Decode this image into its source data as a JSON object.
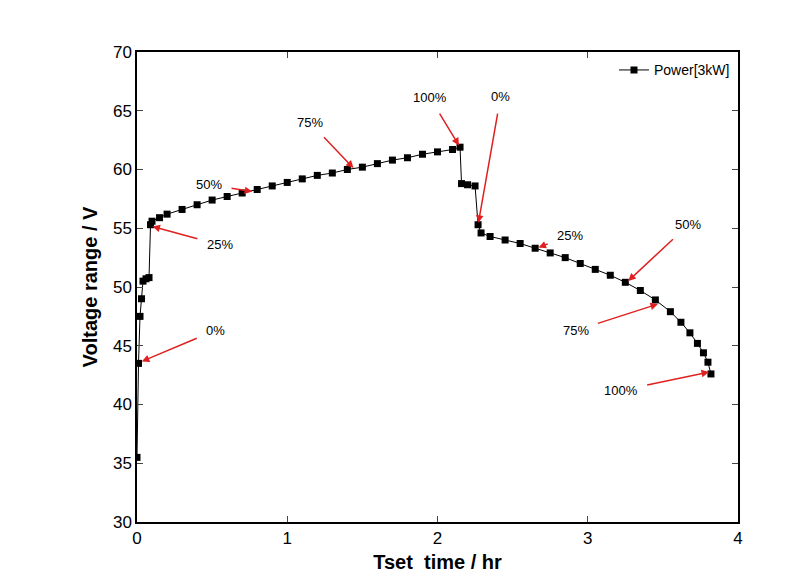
{
  "chart_data": {
    "type": "line",
    "x_label": "Tset  time / hr",
    "y_label": "Voltage range / V",
    "xlim": [
      0,
      4
    ],
    "xticks": [
      0,
      1,
      2,
      3,
      4
    ],
    "ylim": [
      30,
      70
    ],
    "yticks": [
      30,
      35,
      40,
      45,
      50,
      55,
      60,
      65,
      70
    ],
    "grid": false,
    "legend": "top right",
    "x": [
      0.0,
      0.01,
      0.02,
      0.03,
      0.04,
      0.06,
      0.08,
      0.09,
      0.1,
      0.15,
      0.2,
      0.3,
      0.4,
      0.5,
      0.6,
      0.7,
      0.8,
      0.9,
      1.0,
      1.1,
      1.2,
      1.3,
      1.4,
      1.5,
      1.6,
      1.7,
      1.8,
      1.9,
      2.0,
      2.1,
      2.15,
      2.16,
      2.2,
      2.25,
      2.27,
      2.29,
      2.35,
      2.45,
      2.55,
      2.65,
      2.75,
      2.85,
      2.95,
      3.05,
      3.15,
      3.25,
      3.35,
      3.45,
      3.55,
      3.62,
      3.68,
      3.73,
      3.77,
      3.8,
      3.82
    ],
    "series": [
      {
        "name": "Power[3kW]",
        "color": "#000000",
        "marker": "square",
        "line_style": "solid",
        "values": [
          35.5,
          43.5,
          47.5,
          49.0,
          50.5,
          50.7,
          50.8,
          55.3,
          55.6,
          55.9,
          56.2,
          56.6,
          57.0,
          57.4,
          57.7,
          58.0,
          58.3,
          58.6,
          58.9,
          59.2,
          59.5,
          59.7,
          60.0,
          60.2,
          60.5,
          60.8,
          61.0,
          61.3,
          61.5,
          61.7,
          61.9,
          58.8,
          58.7,
          58.6,
          55.3,
          54.6,
          54.3,
          54.0,
          53.7,
          53.3,
          52.9,
          52.5,
          52.0,
          51.5,
          51.0,
          50.4,
          49.7,
          48.9,
          47.9,
          47.0,
          46.1,
          45.2,
          44.4,
          43.6,
          42.6
        ]
      }
    ],
    "annotations": [
      {
        "text": "0%",
        "x": 0.02,
        "y": 43.6,
        "text_x": 0.52,
        "text_y": 46.3,
        "color": "#e02020"
      },
      {
        "text": "25%",
        "x": 0.09,
        "y": 55.2,
        "text_x": 0.55,
        "text_y": 53.6,
        "color": "#e02020"
      },
      {
        "text": "50%",
        "x": 0.78,
        "y": 58.1,
        "text_x": 0.48,
        "text_y": 58.7,
        "color": "#e02020"
      },
      {
        "text": "75%",
        "x": 1.45,
        "y": 60.0,
        "text_x": 1.15,
        "text_y": 64.0,
        "color": "#e02020"
      },
      {
        "text": "100%",
        "x": 2.15,
        "y": 61.9,
        "text_x": 1.95,
        "text_y": 66.1,
        "color": "#e02020"
      },
      {
        "text": "0%",
        "x": 2.27,
        "y": 55.3,
        "text_x": 2.42,
        "text_y": 66.2,
        "color": "#e02020"
      },
      {
        "text": "25%",
        "x": 2.66,
        "y": 53.3,
        "text_x": 2.88,
        "text_y": 54.4,
        "color": "#e02020"
      },
      {
        "text": "50%",
        "x": 3.26,
        "y": 50.4,
        "text_x": 3.67,
        "text_y": 55.3,
        "color": "#e02020"
      },
      {
        "text": "75%",
        "x": 3.48,
        "y": 48.6,
        "text_x": 2.92,
        "text_y": 46.3,
        "color": "#e02020"
      },
      {
        "text": "100%",
        "x": 3.82,
        "y": 42.8,
        "text_x": 3.22,
        "text_y": 41.2,
        "color": "#e02020"
      }
    ]
  }
}
